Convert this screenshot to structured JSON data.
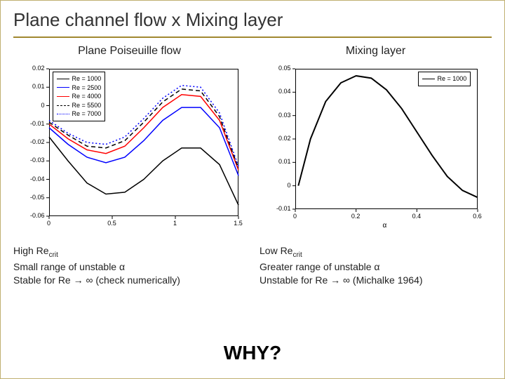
{
  "title": "Plane channel flow x Mixing layer",
  "left": {
    "subtitle": "Plane Poiseuille flow",
    "chart": {
      "type": "line",
      "xlim": [
        0,
        1.5
      ],
      "ylim": [
        -0.06,
        0.02
      ],
      "xticks": [
        0,
        0.5,
        1,
        1.5
      ],
      "yticks": [
        -0.06,
        -0.05,
        -0.04,
        -0.03,
        -0.02,
        -0.01,
        0,
        0.01,
        0.02
      ],
      "xlabel": "",
      "ylabel": "",
      "background_color": "#ffffff",
      "axis_color": "#000000",
      "legend": {
        "position": "top-left",
        "items": [
          {
            "label": "Re = 1000",
            "color": "#000000",
            "dash": "solid"
          },
          {
            "label": "Re = 2500",
            "color": "#0000ff",
            "dash": "solid"
          },
          {
            "label": "Re = 4000",
            "color": "#ff0000",
            "dash": "solid"
          },
          {
            "label": "Re = 5500",
            "color": "#000000",
            "dash": "dashed"
          },
          {
            "label": "Re = 7000",
            "color": "#0000ff",
            "dash": "dotted"
          }
        ]
      },
      "series": [
        {
          "color": "#000000",
          "dash": "solid",
          "x": [
            0,
            0.15,
            0.3,
            0.45,
            0.6,
            0.75,
            0.9,
            1.05,
            1.2,
            1.35,
            1.5
          ],
          "y": [
            -0.017,
            -0.03,
            -0.042,
            -0.048,
            -0.047,
            -0.04,
            -0.03,
            -0.023,
            -0.023,
            -0.032,
            -0.054
          ]
        },
        {
          "color": "#0000ff",
          "dash": "solid",
          "x": [
            0,
            0.15,
            0.3,
            0.45,
            0.6,
            0.75,
            0.9,
            1.05,
            1.2,
            1.35,
            1.5
          ],
          "y": [
            -0.012,
            -0.021,
            -0.028,
            -0.031,
            -0.028,
            -0.019,
            -0.008,
            -0.001,
            -0.001,
            -0.012,
            -0.038
          ]
        },
        {
          "color": "#ff0000",
          "dash": "solid",
          "x": [
            0,
            0.15,
            0.3,
            0.45,
            0.6,
            0.75,
            0.9,
            1.05,
            1.2,
            1.35,
            1.5
          ],
          "y": [
            -0.01,
            -0.018,
            -0.024,
            -0.026,
            -0.022,
            -0.012,
            -0.001,
            0.006,
            0.005,
            -0.008,
            -0.035
          ]
        },
        {
          "color": "#000000",
          "dash": "dashed",
          "x": [
            0,
            0.15,
            0.3,
            0.45,
            0.6,
            0.75,
            0.9,
            1.05,
            1.2,
            1.35,
            1.5
          ],
          "y": [
            -0.009,
            -0.016,
            -0.022,
            -0.023,
            -0.019,
            -0.009,
            0.002,
            0.009,
            0.008,
            -0.006,
            -0.034
          ]
        },
        {
          "color": "#0000ff",
          "dash": "dotted",
          "x": [
            0,
            0.15,
            0.3,
            0.45,
            0.6,
            0.75,
            0.9,
            1.05,
            1.2,
            1.35,
            1.5
          ],
          "y": [
            -0.008,
            -0.015,
            -0.02,
            -0.021,
            -0.017,
            -0.007,
            0.004,
            0.011,
            0.01,
            -0.004,
            -0.033
          ]
        }
      ]
    },
    "notes": {
      "l1a": "High Re",
      "l1b": "crit",
      "l2": "Small range of unstable α",
      "l3": "Stable for Re → ∞ (check numerically)"
    }
  },
  "right": {
    "subtitle": "Mixing layer",
    "chart": {
      "type": "line",
      "xlim": [
        0,
        0.6
      ],
      "ylim": [
        -0.01,
        0.05
      ],
      "xticks": [
        0,
        0.2,
        0.4,
        0.6
      ],
      "yticks": [
        -0.01,
        0,
        0.01,
        0.02,
        0.03,
        0.04,
        0.05
      ],
      "xlabel": "α",
      "ylabel": "",
      "background_color": "#ffffff",
      "axis_color": "#000000",
      "legend": {
        "position": "top-right",
        "items": [
          {
            "label": "Re = 1000",
            "color": "#000000",
            "dash": "solid"
          }
        ]
      },
      "series": [
        {
          "color": "#000000",
          "dash": "solid",
          "width": 2,
          "x": [
            0.01,
            0.05,
            0.1,
            0.15,
            0.2,
            0.25,
            0.3,
            0.35,
            0.4,
            0.45,
            0.5,
            0.55,
            0.6
          ],
          "y": [
            0.0,
            0.02,
            0.036,
            0.044,
            0.047,
            0.046,
            0.041,
            0.033,
            0.023,
            0.013,
            0.004,
            -0.002,
            -0.005
          ]
        }
      ]
    },
    "notes": {
      "l1a": "Low Re",
      "l1b": "crit",
      "l2": "Greater range of unstable α",
      "l3": "Unstable for Re → ∞ (Michalke 1964)"
    }
  },
  "why": "WHY?"
}
